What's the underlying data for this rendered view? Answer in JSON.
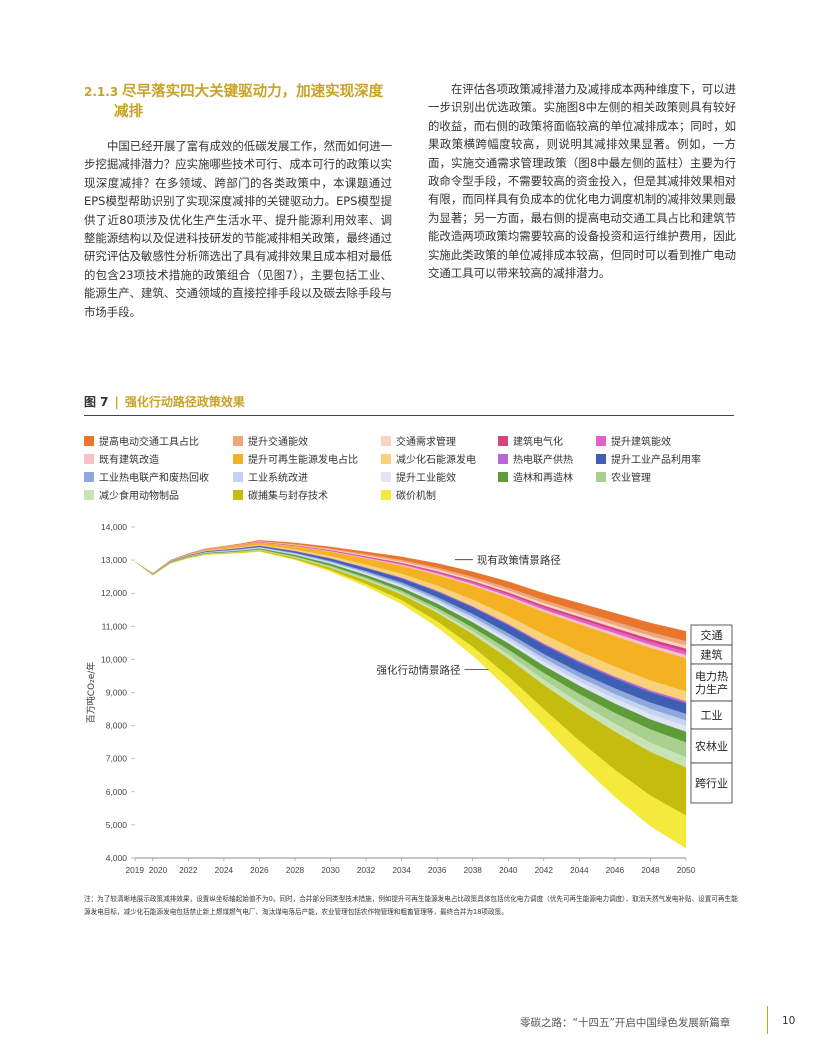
{
  "section": {
    "number": "2.1.3",
    "title_line1": "尽早落实四大关键驱动力，加速实现深度",
    "title_line2": "减排"
  },
  "left_paragraph": "中国已经开展了富有成效的低碳发展工作，然而如何进一步挖掘减排潜力？应实施哪些技术可行、成本可行的政策以实现深度减排？在多领域、跨部门的各类政策中，本课题通过EPS模型帮助识别了实现深度减排的关键驱动力。EPS模型提供了近80项涉及优化生产生活水平、提升能源利用效率、调整能源结构以及促进科技研发的节能减排相关政策，最终通过研究评估及敏感性分析筛选出了具有减排效果且成本相对最低的包含23项技术措施的政策组合（见图7），主要包括工业、能源生产、建筑、交通领域的直接控排手段以及碳去除手段与市场手段。",
  "right_paragraph": "在评估各项政策减排潜力及减排成本两种维度下，可以进一步识别出优选政策。实施图8中左侧的相关政策则具有较好的收益，而右侧的政策将面临较高的单位减排成本；同时，如果政策横跨幅度较高，则说明其减排效果显著。例如，一方面，实施交通需求管理政策（图8中最左侧的蓝柱）主要为行政命令型手段，不需要较高的资金投入，但是其减排效果相对有限，而同样具有负成本的优化电力调度机制的减排效果则最为显著；另一方面，最右侧的提高电动交通工具占比和建筑节能改造两项政策均需要较高的设备投资和运行维护费用，因此实施此类政策的单位减排成本较高，但同时可以看到推广电动交通工具可以带来较高的减排潜力。",
  "figure": {
    "label": "图 7",
    "separator": "|",
    "title": "强化行动路径政策效果"
  },
  "legend": [
    {
      "label": "提高电动交通工具占比",
      "color": "#e8762c"
    },
    {
      "label": "提升交通能效",
      "color": "#f0a57a"
    },
    {
      "label": "交通需求管理",
      "color": "#f7d5c2"
    },
    {
      "label": "建筑电气化",
      "color": "#d6427a"
    },
    {
      "label": "提升建筑能效",
      "color": "#e45fc8"
    },
    {
      "label": "既有建筑改造",
      "color": "#f6c2c8"
    },
    {
      "label": "提升可再生能源发电占比",
      "color": "#f4b223"
    },
    {
      "label": "减少化石能源发电",
      "color": "#f7d27a"
    },
    {
      "label": "热电联产供热",
      "color": "#b866d9"
    },
    {
      "label": "提升工业产品利用率",
      "color": "#3f5fb5"
    },
    {
      "label": "工业热电联产和废热回收",
      "color": "#8ea7dc"
    },
    {
      "label": "工业系统改进",
      "color": "#c6d3f0"
    },
    {
      "label": "提升工业能效",
      "color": "#dfe5f7"
    },
    {
      "label": "造林和再造林",
      "color": "#5e9c3a"
    },
    {
      "label": "农业管理",
      "color": "#a9d08e"
    },
    {
      "label": "减少食用动物制品",
      "color": "#c8e3b5"
    },
    {
      "label": "碳捕集与封存技术",
      "color": "#c4bd10"
    },
    {
      "label": "碳价机制",
      "color": "#f4ea3c"
    }
  ],
  "chart_data": {
    "type": "area",
    "title": "强化行动路径政策效果",
    "xlabel": "",
    "ylabel": "百万吨CO₂e/年",
    "xlim": [
      2019,
      2050
    ],
    "ylim": [
      4000,
      14000
    ],
    "x_ticks": [
      "2019",
      "2020",
      "2022",
      "2024",
      "2026",
      "2028",
      "2030",
      "2032",
      "2034",
      "2036",
      "2038",
      "2040",
      "2042",
      "2044",
      "2046",
      "2048",
      "2050"
    ],
    "y_ticks": [
      "4,000",
      "5,000",
      "6,000",
      "7,000",
      "8,000",
      "9,000",
      "10,000",
      "11,000",
      "12,000",
      "13,000",
      "14,000"
    ],
    "x": [
      2019,
      2020,
      2021,
      2022,
      2023,
      2024,
      2025,
      2026,
      2028,
      2030,
      2032,
      2034,
      2036,
      2038,
      2040,
      2042,
      2044,
      2046,
      2048,
      2050
    ],
    "baseline": {
      "name": "现有政策情景路径",
      "values": [
        12950,
        12600,
        13000,
        13200,
        13350,
        13420,
        13500,
        13600,
        13520,
        13400,
        13250,
        13100,
        12900,
        12650,
        12350,
        12000,
        11700,
        11400,
        11100,
        10850
      ]
    },
    "reduction_series": [
      {
        "name": "提高电动交通工具占比",
        "values": [
          0,
          5,
          8,
          10,
          14,
          18,
          22,
          28,
          40,
          55,
          75,
          100,
          130,
          160,
          190,
          215,
          240,
          260,
          280,
          300
        ]
      },
      {
        "name": "提升交通能效",
        "values": [
          0,
          2,
          4,
          5,
          7,
          9,
          11,
          14,
          20,
          28,
          38,
          50,
          60,
          70,
          80,
          90,
          100,
          110,
          120,
          130
        ]
      },
      {
        "name": "交通需求管理",
        "values": [
          0,
          2,
          3,
          4,
          6,
          8,
          10,
          12,
          18,
          24,
          32,
          40,
          50,
          58,
          66,
          74,
          80,
          86,
          92,
          100
        ]
      },
      {
        "name": "建筑电气化",
        "values": [
          0,
          2,
          3,
          4,
          5,
          6,
          7,
          8,
          12,
          16,
          20,
          26,
          32,
          40,
          48,
          56,
          64,
          72,
          80,
          90
        ]
      },
      {
        "name": "提升建筑能效",
        "values": [
          0,
          2,
          3,
          4,
          5,
          6,
          7,
          8,
          12,
          16,
          22,
          30,
          40,
          50,
          60,
          70,
          80,
          88,
          94,
          100
        ]
      },
      {
        "name": "既有建筑改造",
        "values": [
          0,
          1,
          2,
          3,
          4,
          5,
          6,
          8,
          12,
          16,
          22,
          30,
          40,
          50,
          60,
          70,
          80,
          88,
          94,
          100
        ]
      },
      {
        "name": "提升可再生能源发电占比",
        "values": [
          0,
          8,
          15,
          22,
          30,
          40,
          50,
          60,
          90,
          130,
          180,
          240,
          320,
          420,
          540,
          680,
          820,
          920,
          980,
          1000
        ]
      },
      {
        "name": "减少化石能源发电",
        "values": [
          0,
          4,
          8,
          12,
          16,
          20,
          25,
          30,
          45,
          65,
          90,
          120,
          160,
          200,
          240,
          270,
          290,
          300,
          300,
          300
        ]
      },
      {
        "name": "热电联产供热",
        "values": [
          0,
          1,
          2,
          3,
          4,
          5,
          6,
          8,
          10,
          14,
          18,
          22,
          28,
          34,
          40,
          46,
          52,
          56,
          60,
          60
        ]
      },
      {
        "name": "提升工业产品利用率",
        "values": [
          0,
          5,
          8,
          12,
          16,
          20,
          25,
          30,
          45,
          65,
          90,
          120,
          160,
          200,
          240,
          270,
          290,
          300,
          310,
          320
        ]
      },
      {
        "name": "工业热电联产和废热回收",
        "values": [
          0,
          4,
          6,
          8,
          10,
          12,
          14,
          16,
          22,
          30,
          40,
          55,
          70,
          90,
          110,
          130,
          150,
          170,
          190,
          200
        ]
      },
      {
        "name": "工业系统改进",
        "values": [
          0,
          3,
          5,
          7,
          9,
          11,
          13,
          15,
          20,
          28,
          38,
          50,
          64,
          80,
          96,
          112,
          128,
          144,
          160,
          170
        ]
      },
      {
        "name": "提升工业能效",
        "values": [
          0,
          3,
          5,
          7,
          9,
          11,
          13,
          15,
          20,
          28,
          38,
          50,
          64,
          80,
          96,
          112,
          128,
          144,
          160,
          170
        ]
      },
      {
        "name": "造林和再造林",
        "values": [
          0,
          8,
          12,
          16,
          20,
          24,
          28,
          32,
          45,
          60,
          80,
          100,
          130,
          160,
          190,
          220,
          250,
          280,
          300,
          320
        ]
      },
      {
        "name": "农业管理",
        "values": [
          0,
          4,
          6,
          8,
          10,
          12,
          14,
          16,
          24,
          34,
          46,
          60,
          80,
          110,
          150,
          200,
          260,
          330,
          400,
          450
        ]
      },
      {
        "name": "减少食用动物制品",
        "values": [
          0,
          2,
          4,
          6,
          8,
          10,
          12,
          14,
          20,
          28,
          38,
          50,
          66,
          90,
          120,
          160,
          200,
          240,
          280,
          310
        ]
      },
      {
        "name": "碳捕集与封存技术",
        "values": [
          0,
          4,
          6,
          8,
          10,
          12,
          15,
          20,
          40,
          70,
          110,
          170,
          260,
          380,
          540,
          730,
          950,
          1150,
          1320,
          1450
        ]
      },
      {
        "name": "碳价机制",
        "values": [
          0,
          2,
          3,
          4,
          5,
          6,
          8,
          10,
          20,
          40,
          70,
          110,
          170,
          260,
          380,
          520,
          680,
          820,
          920,
          980
        ]
      }
    ],
    "annotations": [
      "现有政策情景路径",
      "强化行动情景路径"
    ],
    "sector_labels": [
      "交通",
      "建筑",
      "电力热力生产",
      "工业",
      "农林业",
      "跨行业"
    ]
  },
  "sector_label_lines": [
    [
      "交通"
    ],
    [
      "建筑"
    ],
    [
      "电力热",
      "力生产"
    ],
    [
      "工业"
    ],
    [
      "农林业"
    ],
    [
      "跨行业"
    ]
  ],
  "note": "注：为了较清晰地展示政策减排效果，设置纵坐标轴起始值不为0。同时，合并部分同类型技术措施，例如提升可再生能源发电占比政策具体包括优化电力调度（优先可再生能源电力调度）、取消天然气发电补贴、设置可再生能源发电目标，减少化石能源发电包括禁止新上燃煤燃气电厂、淘汰煤电落后产能，农业管理包括农作物管理和粗畜管理等，最终合并为18项政策。",
  "footer": {
    "text": "零碳之路：“十四五”开启中国绿色发展新篇章",
    "page": "10"
  }
}
